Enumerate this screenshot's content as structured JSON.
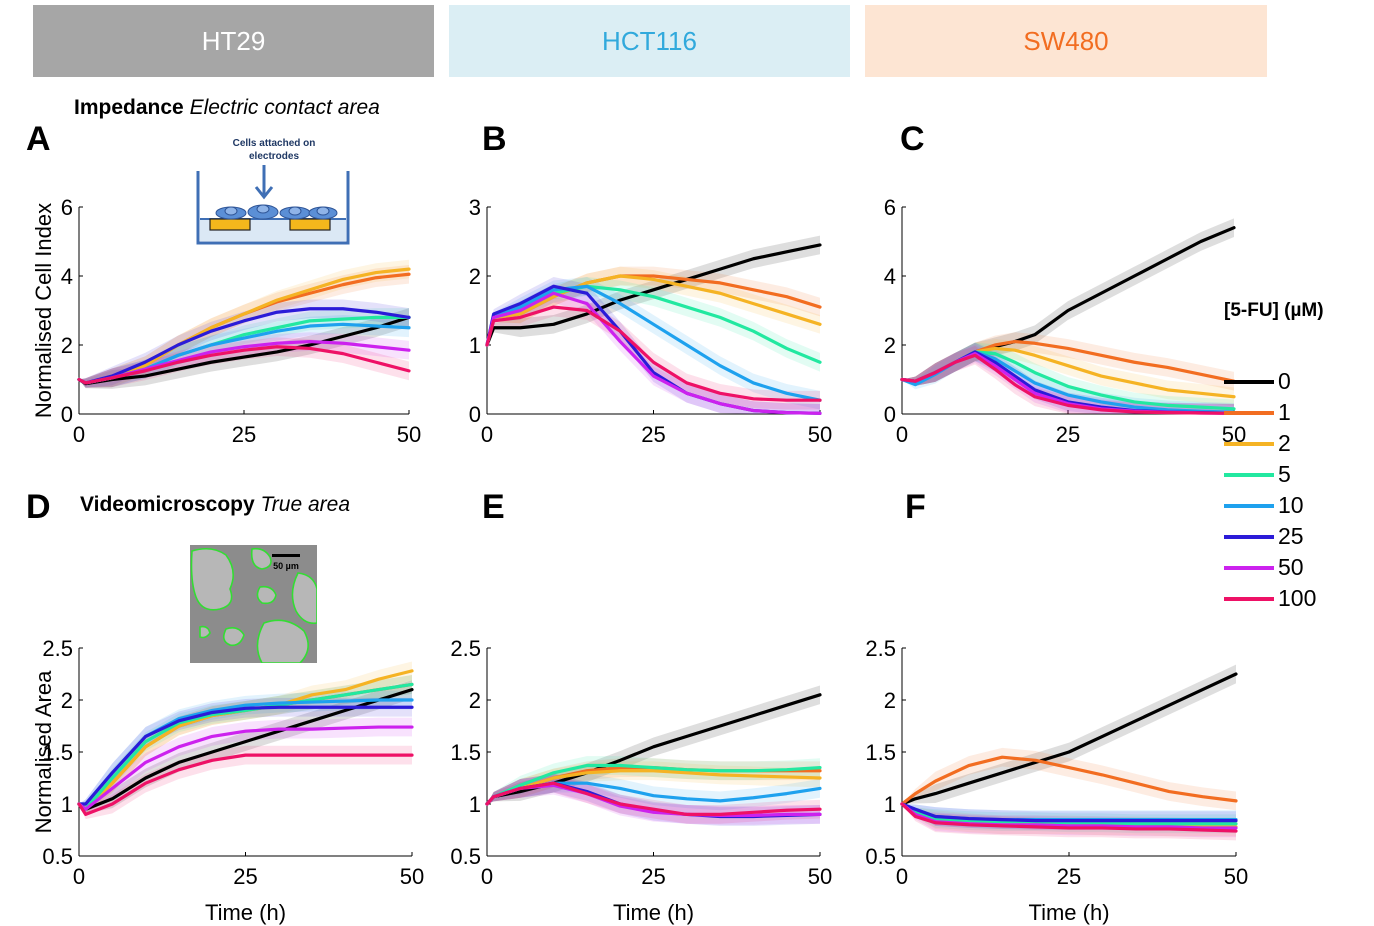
{
  "headers": [
    {
      "label": "HT29",
      "bg": "#a6a6a6",
      "fg": "#ffffff"
    },
    {
      "label": "HCT116",
      "bg": "#dbeef4",
      "fg": "#31a9dc"
    },
    {
      "label": "SW480",
      "bg": "#fde5d3",
      "fg": "#f26d21"
    }
  ],
  "sections": {
    "impedance": {
      "bold": "Impedance",
      "italic": "Electric contact area"
    },
    "video": {
      "bold": "Videomicroscopy",
      "italic": "True area"
    }
  },
  "insets": {
    "impedance_caption_1": "Cells attached on",
    "impedance_caption_2": "electrodes",
    "scale_bar": "50 µm"
  },
  "legend": {
    "title": "[5-FU] (µM)",
    "entries": [
      {
        "label": "0",
        "color": "#000000"
      },
      {
        "label": "1",
        "color": "#f26d21"
      },
      {
        "label": "2",
        "color": "#f5b324"
      },
      {
        "label": "5",
        "color": "#22e8a0"
      },
      {
        "label": "10",
        "color": "#1ea1ee"
      },
      {
        "label": "25",
        "color": "#2b1bd8"
      },
      {
        "label": "50",
        "color": "#cc22ee"
      },
      {
        "label": "100",
        "color": "#ee1166"
      }
    ]
  },
  "colors": [
    "#000000",
    "#f26d21",
    "#f5b324",
    "#22e8a0",
    "#1ea1ee",
    "#2b1bd8",
    "#cc22ee",
    "#ee1166"
  ],
  "chart_data": [
    {
      "panel": "A",
      "type": "line",
      "xlabel": "",
      "ylabel": "Normalised Cell Index",
      "xlim": [
        0,
        50
      ],
      "ylim": [
        0,
        6
      ],
      "xticks": [
        0,
        25,
        50
      ],
      "yticks": [
        0,
        2,
        4,
        6
      ],
      "x": [
        0,
        1,
        5,
        10,
        15,
        20,
        25,
        30,
        35,
        40,
        45,
        50
      ],
      "series": [
        {
          "name": "0",
          "values": [
            1,
            0.88,
            1.0,
            1.1,
            1.3,
            1.5,
            1.65,
            1.8,
            2.0,
            2.25,
            2.5,
            2.8
          ]
        },
        {
          "name": "1",
          "values": [
            1,
            0.9,
            1.05,
            1.4,
            2.0,
            2.5,
            2.9,
            3.25,
            3.5,
            3.75,
            3.95,
            4.05
          ]
        },
        {
          "name": "2",
          "values": [
            1,
            0.9,
            1.05,
            1.4,
            2.0,
            2.5,
            2.9,
            3.3,
            3.6,
            3.9,
            4.1,
            4.2
          ]
        },
        {
          "name": "5",
          "values": [
            1,
            0.9,
            1.05,
            1.3,
            1.7,
            2.0,
            2.3,
            2.5,
            2.7,
            2.75,
            2.8,
            2.8
          ]
        },
        {
          "name": "10",
          "values": [
            1,
            0.9,
            1.05,
            1.3,
            1.7,
            2.0,
            2.2,
            2.4,
            2.55,
            2.6,
            2.55,
            2.5
          ]
        },
        {
          "name": "25",
          "values": [
            1,
            0.9,
            1.1,
            1.5,
            2.0,
            2.4,
            2.7,
            2.95,
            3.05,
            3.05,
            2.95,
            2.8
          ]
        },
        {
          "name": "50",
          "values": [
            1,
            0.9,
            1.05,
            1.3,
            1.55,
            1.8,
            1.95,
            2.05,
            2.1,
            2.05,
            1.95,
            1.85
          ]
        },
        {
          "name": "100",
          "values": [
            1,
            0.9,
            1.05,
            1.25,
            1.5,
            1.7,
            1.85,
            1.95,
            1.9,
            1.75,
            1.5,
            1.25
          ]
        }
      ]
    },
    {
      "panel": "B",
      "type": "line",
      "xlabel": "",
      "ylabel": "",
      "xlim": [
        0,
        50
      ],
      "ylim": [
        0,
        3
      ],
      "xticks": [
        0,
        25,
        50
      ],
      "yticks": [
        0,
        1,
        2,
        3
      ],
      "x": [
        0,
        1,
        5,
        10,
        15,
        20,
        25,
        30,
        35,
        40,
        45,
        50
      ],
      "series": [
        {
          "name": "0",
          "values": [
            1,
            1.25,
            1.25,
            1.3,
            1.45,
            1.65,
            1.8,
            1.95,
            2.1,
            2.25,
            2.35,
            2.45
          ]
        },
        {
          "name": "1",
          "values": [
            1,
            1.4,
            1.45,
            1.7,
            1.9,
            2.0,
            2.0,
            1.95,
            1.9,
            1.8,
            1.7,
            1.55
          ]
        },
        {
          "name": "2",
          "values": [
            1,
            1.4,
            1.45,
            1.7,
            1.9,
            2.0,
            1.95,
            1.85,
            1.75,
            1.6,
            1.45,
            1.3
          ]
        },
        {
          "name": "5",
          "values": [
            1,
            1.4,
            1.5,
            1.75,
            1.85,
            1.8,
            1.7,
            1.55,
            1.4,
            1.2,
            0.95,
            0.75
          ]
        },
        {
          "name": "10",
          "values": [
            1,
            1.4,
            1.55,
            1.8,
            1.85,
            1.6,
            1.3,
            1.0,
            0.7,
            0.45,
            0.3,
            0.2
          ]
        },
        {
          "name": "25",
          "values": [
            1,
            1.45,
            1.6,
            1.85,
            1.75,
            1.2,
            0.6,
            0.3,
            0.15,
            0.05,
            0.02,
            0.01
          ]
        },
        {
          "name": "50",
          "values": [
            1,
            1.4,
            1.5,
            1.75,
            1.6,
            1.05,
            0.55,
            0.3,
            0.15,
            0.05,
            0.02,
            0.01
          ]
        },
        {
          "name": "100",
          "values": [
            1,
            1.35,
            1.4,
            1.55,
            1.5,
            1.2,
            0.75,
            0.45,
            0.3,
            0.22,
            0.2,
            0.2
          ]
        }
      ]
    },
    {
      "panel": "C",
      "type": "line",
      "xlabel": "",
      "ylabel": "",
      "xlim": [
        0,
        50
      ],
      "ylim": [
        0,
        6
      ],
      "xticks": [
        0,
        25,
        50
      ],
      "yticks": [
        0,
        2,
        4,
        6
      ],
      "x": [
        0,
        2,
        5,
        8,
        11,
        14,
        17,
        20,
        25,
        30,
        35,
        40,
        45,
        50
      ],
      "series": [
        {
          "name": "0",
          "values": [
            1,
            0.95,
            1.2,
            1.5,
            1.8,
            1.95,
            2.1,
            2.3,
            3.0,
            3.5,
            4.0,
            4.5,
            5.0,
            5.4
          ]
        },
        {
          "name": "1",
          "values": [
            1,
            0.95,
            1.2,
            1.5,
            1.8,
            2.0,
            2.1,
            2.05,
            1.9,
            1.7,
            1.5,
            1.35,
            1.15,
            0.95
          ]
        },
        {
          "name": "2",
          "values": [
            1,
            0.95,
            1.2,
            1.5,
            1.8,
            1.9,
            1.85,
            1.7,
            1.4,
            1.1,
            0.9,
            0.7,
            0.6,
            0.5
          ]
        },
        {
          "name": "5",
          "values": [
            1,
            0.95,
            1.2,
            1.5,
            1.8,
            1.75,
            1.5,
            1.2,
            0.8,
            0.55,
            0.35,
            0.25,
            0.2,
            0.15
          ]
        },
        {
          "name": "10",
          "values": [
            1,
            0.85,
            1.15,
            1.5,
            1.8,
            1.6,
            1.25,
            0.9,
            0.55,
            0.35,
            0.2,
            0.12,
            0.08,
            0.05
          ]
        },
        {
          "name": "25",
          "values": [
            1,
            0.95,
            1.2,
            1.5,
            1.8,
            1.5,
            1.1,
            0.7,
            0.35,
            0.2,
            0.1,
            0.06,
            0.04,
            0.02
          ]
        },
        {
          "name": "50",
          "values": [
            1,
            0.95,
            1.2,
            1.5,
            1.75,
            1.4,
            1.0,
            0.6,
            0.3,
            0.15,
            0.08,
            0.05,
            0.03,
            0.02
          ]
        },
        {
          "name": "100",
          "values": [
            1,
            0.95,
            1.2,
            1.5,
            1.7,
            1.3,
            0.85,
            0.5,
            0.25,
            0.12,
            0.06,
            0.04,
            0.03,
            0.02
          ]
        }
      ]
    },
    {
      "panel": "D",
      "type": "line",
      "xlabel": "Time (h)",
      "ylabel": "Normalised Area",
      "xlim": [
        0,
        50
      ],
      "ylim": [
        0.5,
        2.5
      ],
      "xticks": [
        0,
        25,
        50
      ],
      "yticks": [
        0.5,
        1,
        1.5,
        2,
        2.5
      ],
      "x": [
        0,
        1,
        5,
        10,
        15,
        20,
        25,
        30,
        35,
        40,
        45,
        50
      ],
      "series": [
        {
          "name": "0",
          "values": [
            1,
            0.95,
            1.05,
            1.25,
            1.4,
            1.5,
            1.6,
            1.7,
            1.8,
            1.9,
            2.0,
            2.1
          ]
        },
        {
          "name": "1",
          "values": [
            1,
            0.95,
            1.2,
            1.55,
            1.75,
            1.85,
            1.9,
            1.95,
            2.0,
            2.05,
            2.1,
            2.15
          ]
        },
        {
          "name": "2",
          "values": [
            1,
            0.95,
            1.2,
            1.55,
            1.75,
            1.85,
            1.9,
            1.95,
            2.05,
            2.1,
            2.2,
            2.28
          ]
        },
        {
          "name": "5",
          "values": [
            1,
            0.95,
            1.25,
            1.6,
            1.78,
            1.86,
            1.9,
            1.95,
            2.0,
            2.05,
            2.1,
            2.15
          ]
        },
        {
          "name": "10",
          "values": [
            1,
            1.0,
            1.3,
            1.65,
            1.82,
            1.9,
            1.95,
            1.97,
            1.98,
            1.99,
            2.0,
            2.0
          ]
        },
        {
          "name": "25",
          "values": [
            1,
            1.0,
            1.3,
            1.65,
            1.8,
            1.88,
            1.92,
            1.93,
            1.93,
            1.93,
            1.93,
            1.93
          ]
        },
        {
          "name": "50",
          "values": [
            1,
            0.95,
            1.15,
            1.4,
            1.55,
            1.65,
            1.7,
            1.72,
            1.72,
            1.73,
            1.74,
            1.74
          ]
        },
        {
          "name": "100",
          "values": [
            1,
            0.9,
            1.0,
            1.2,
            1.33,
            1.42,
            1.47,
            1.47,
            1.47,
            1.47,
            1.47,
            1.47
          ]
        }
      ]
    },
    {
      "panel": "E",
      "type": "line",
      "xlabel": "Time (h)",
      "ylabel": "",
      "xlim": [
        0,
        50
      ],
      "ylim": [
        0.5,
        2.5
      ],
      "xticks": [
        0,
        25,
        50
      ],
      "yticks": [
        0.5,
        1,
        1.5,
        2,
        2.5
      ],
      "x": [
        0,
        1,
        5,
        10,
        15,
        20,
        25,
        30,
        35,
        40,
        45,
        50
      ],
      "series": [
        {
          "name": "0",
          "values": [
            1,
            1.07,
            1.12,
            1.2,
            1.3,
            1.42,
            1.55,
            1.65,
            1.75,
            1.85,
            1.95,
            2.05
          ]
        },
        {
          "name": "1",
          "values": [
            1,
            1.07,
            1.15,
            1.25,
            1.32,
            1.35,
            1.35,
            1.33,
            1.32,
            1.32,
            1.32,
            1.32
          ]
        },
        {
          "name": "2",
          "values": [
            1,
            1.07,
            1.15,
            1.25,
            1.3,
            1.32,
            1.32,
            1.3,
            1.28,
            1.27,
            1.26,
            1.25
          ]
        },
        {
          "name": "5",
          "values": [
            1,
            1.07,
            1.18,
            1.3,
            1.37,
            1.37,
            1.35,
            1.33,
            1.32,
            1.32,
            1.33,
            1.35
          ]
        },
        {
          "name": "10",
          "values": [
            1,
            1.07,
            1.15,
            1.2,
            1.2,
            1.15,
            1.08,
            1.05,
            1.03,
            1.06,
            1.1,
            1.15
          ]
        },
        {
          "name": "25",
          "values": [
            1,
            1.07,
            1.15,
            1.2,
            1.12,
            1.0,
            0.93,
            0.9,
            0.88,
            0.88,
            0.89,
            0.9
          ]
        },
        {
          "name": "50",
          "values": [
            1,
            1.07,
            1.15,
            1.18,
            1.1,
            0.98,
            0.92,
            0.9,
            0.89,
            0.89,
            0.9,
            0.9
          ]
        },
        {
          "name": "100",
          "values": [
            1,
            1.07,
            1.15,
            1.2,
            1.1,
            1.0,
            0.95,
            0.9,
            0.9,
            0.92,
            0.94,
            0.95
          ]
        }
      ]
    },
    {
      "panel": "F",
      "type": "line",
      "xlabel": "Time (h)",
      "ylabel": "",
      "xlim": [
        0,
        50
      ],
      "ylim": [
        0.5,
        2.5
      ],
      "xticks": [
        0,
        25,
        50
      ],
      "yticks": [
        0.5,
        1,
        1.5,
        2,
        2.5
      ],
      "x": [
        0,
        2,
        5,
        10,
        15,
        20,
        25,
        30,
        35,
        40,
        45,
        50
      ],
      "series": [
        {
          "name": "0",
          "values": [
            1,
            1.05,
            1.1,
            1.2,
            1.3,
            1.4,
            1.5,
            1.65,
            1.8,
            1.95,
            2.1,
            2.25
          ]
        },
        {
          "name": "1",
          "values": [
            1,
            1.1,
            1.22,
            1.37,
            1.45,
            1.42,
            1.35,
            1.28,
            1.2,
            1.12,
            1.07,
            1.03
          ]
        },
        {
          "name": "2",
          "values": [
            1,
            0.92,
            0.85,
            0.82,
            0.8,
            0.8,
            0.8,
            0.79,
            0.79,
            0.78,
            0.78,
            0.78
          ]
        },
        {
          "name": "5",
          "values": [
            1,
            0.92,
            0.86,
            0.84,
            0.83,
            0.83,
            0.82,
            0.82,
            0.81,
            0.81,
            0.81,
            0.81
          ]
        },
        {
          "name": "10",
          "values": [
            1,
            0.95,
            0.88,
            0.86,
            0.85,
            0.85,
            0.85,
            0.85,
            0.85,
            0.85,
            0.85,
            0.85
          ]
        },
        {
          "name": "25",
          "values": [
            1,
            0.95,
            0.88,
            0.86,
            0.85,
            0.84,
            0.84,
            0.84,
            0.84,
            0.84,
            0.84,
            0.84
          ]
        },
        {
          "name": "50",
          "values": [
            1,
            0.9,
            0.83,
            0.81,
            0.8,
            0.8,
            0.79,
            0.79,
            0.78,
            0.78,
            0.77,
            0.77
          ]
        },
        {
          "name": "100",
          "values": [
            1,
            0.88,
            0.82,
            0.8,
            0.79,
            0.78,
            0.77,
            0.77,
            0.76,
            0.76,
            0.75,
            0.74
          ]
        }
      ]
    }
  ]
}
